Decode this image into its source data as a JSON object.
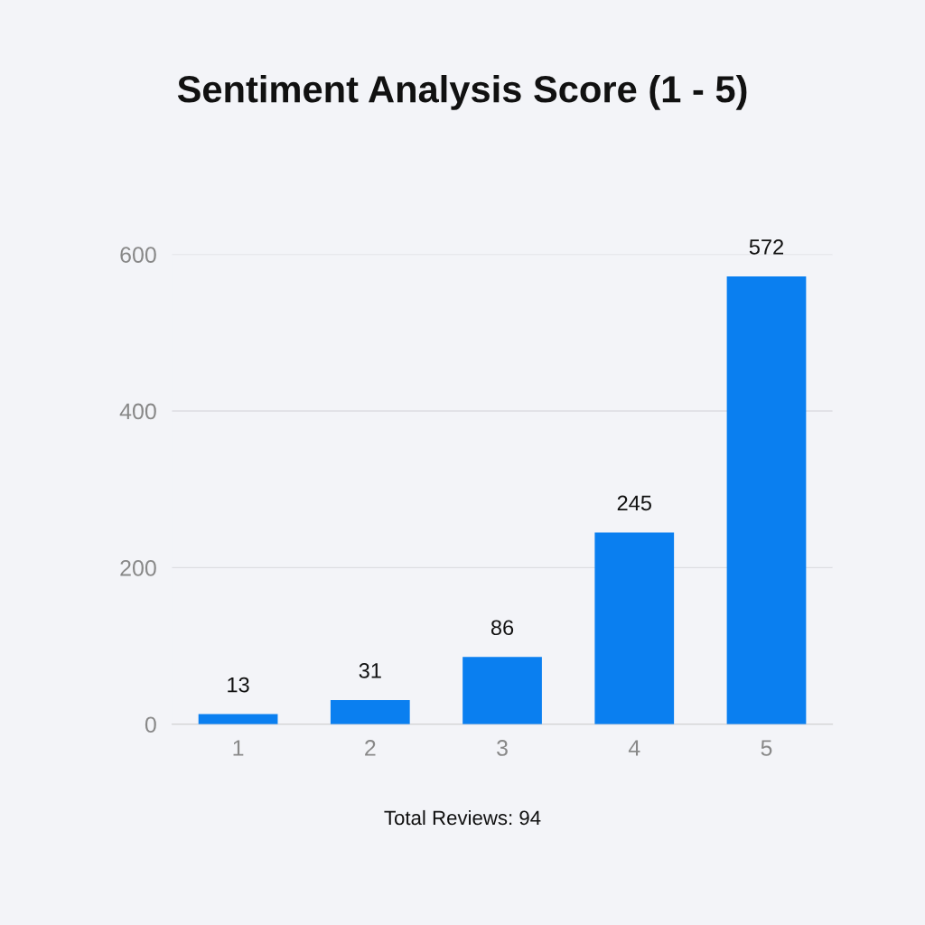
{
  "chart_data": {
    "type": "bar",
    "title": "Sentiment Analysis Score (1 - 5)",
    "categories": [
      "1",
      "2",
      "3",
      "4",
      "5"
    ],
    "values": [
      13,
      31,
      86,
      245,
      572
    ],
    "color": "#0a7ff0",
    "ylim": [
      0,
      600
    ],
    "yticks": [
      0,
      200,
      400,
      600
    ],
    "grid": "y",
    "data_labels": true,
    "annotations": [
      "Total Reviews: 94"
    ]
  }
}
